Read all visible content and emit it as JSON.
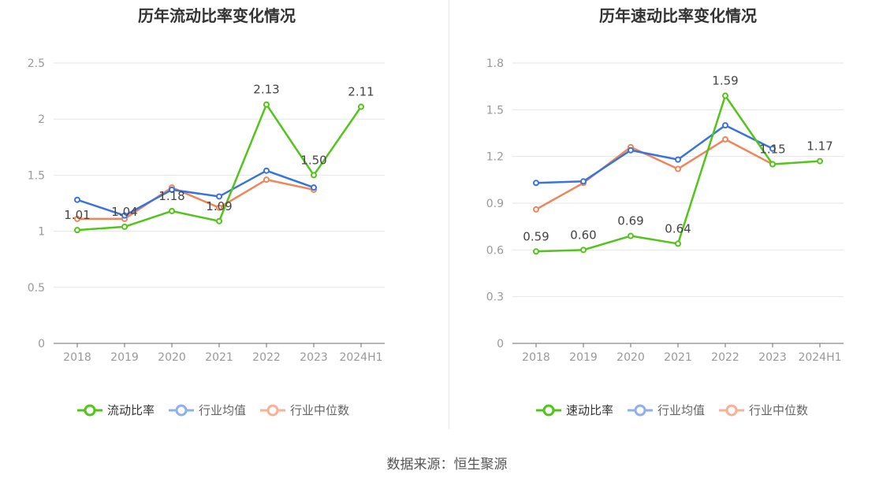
{
  "charts": [
    {
      "title": "历年流动比率变化情况",
      "legend": [
        "流动比率",
        "行业均值",
        "行业中位数"
      ]
    },
    {
      "title": "历年速动比率变化情况",
      "legend": [
        "速动比率",
        "行业均值",
        "行业中位数"
      ]
    }
  ],
  "source": "数据来源：恒生聚源",
  "colors": {
    "primary": "#52c41a",
    "avg": "#3a73d9",
    "median": "#f0845a"
  },
  "chart_data": [
    {
      "type": "line",
      "title": "历年流动比率变化情况",
      "categories": [
        "2018",
        "2019",
        "2020",
        "2021",
        "2022",
        "2023",
        "2024H1"
      ],
      "ylim": [
        0,
        2.5
      ],
      "yticks": [
        "0",
        "0.5",
        "1",
        "1.5",
        "2",
        "2.5"
      ],
      "grid": true,
      "legend_position": "bottom",
      "series": [
        {
          "name": "流动比率",
          "values": [
            1.01,
            1.04,
            1.18,
            1.09,
            2.13,
            1.5,
            2.11
          ],
          "labels": [
            "1.01",
            "1.04",
            "1.18",
            "1.09",
            "2.13",
            "1.50",
            "2.11"
          ],
          "color": "#52c41a"
        },
        {
          "name": "行业均值",
          "values": [
            1.28,
            1.14,
            1.37,
            1.31,
            1.54,
            1.39,
            null
          ],
          "color": "#3a73d9"
        },
        {
          "name": "行业中位数",
          "values": [
            1.11,
            1.11,
            1.39,
            1.21,
            1.46,
            1.37,
            null
          ],
          "color": "#f0845a"
        }
      ]
    },
    {
      "type": "line",
      "title": "历年速动比率变化情况",
      "categories": [
        "2018",
        "2019",
        "2020",
        "2021",
        "2022",
        "2023",
        "2024H1"
      ],
      "ylim": [
        0,
        1.8
      ],
      "yticks": [
        "0",
        "0.3",
        "0.6",
        "0.9",
        "1.2",
        "1.5",
        "1.8"
      ],
      "grid": true,
      "legend_position": "bottom",
      "series": [
        {
          "name": "速动比率",
          "values": [
            0.59,
            0.6,
            0.69,
            0.64,
            1.59,
            1.15,
            1.17
          ],
          "labels": [
            "0.59",
            "0.60",
            "0.69",
            "0.64",
            "1.59",
            "1.15",
            "1.17"
          ],
          "color": "#52c41a"
        },
        {
          "name": "行业均值",
          "values": [
            1.03,
            1.04,
            1.24,
            1.18,
            1.4,
            1.25,
            null
          ],
          "color": "#3a73d9"
        },
        {
          "name": "行业中位数",
          "values": [
            0.86,
            1.03,
            1.26,
            1.12,
            1.31,
            1.15,
            null
          ],
          "color": "#f0845a"
        }
      ]
    }
  ]
}
